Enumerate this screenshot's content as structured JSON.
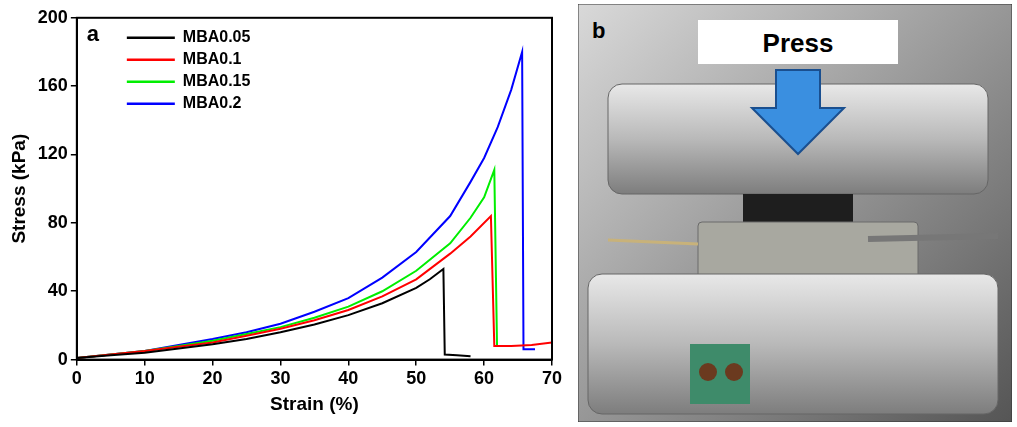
{
  "chart_data": {
    "type": "line",
    "panel_label": "a",
    "x_label": "Strain (%)",
    "y_label": "Stress (kPa)",
    "xlim": [
      0,
      70
    ],
    "xticks": [
      0,
      10,
      20,
      30,
      40,
      50,
      60,
      70
    ],
    "ylim": [
      0,
      200
    ],
    "yticks": [
      0,
      40,
      80,
      120,
      160,
      200
    ],
    "grid": false,
    "legend": "upper left",
    "series": [
      {
        "name": "MBA0.05",
        "color": "#000000",
        "x": [
          0,
          5,
          10,
          15,
          20,
          25,
          30,
          35,
          40,
          45,
          50,
          52,
          54,
          54.2,
          56,
          58
        ],
        "values": [
          1,
          2.5,
          4,
          6.5,
          9,
          12,
          16,
          20.5,
          26,
          33,
          42,
          47,
          53,
          3,
          2.5,
          2
        ]
      },
      {
        "name": "MBA0.1",
        "color": "#ff0000",
        "x": [
          0,
          5,
          10,
          15,
          20,
          25,
          30,
          35,
          40,
          45,
          50,
          55,
          58,
          61,
          61.5,
          64,
          67,
          70
        ],
        "values": [
          1,
          3,
          5,
          7.5,
          10,
          14,
          18,
          23,
          29,
          37,
          47,
          62,
          72,
          84,
          8,
          8,
          8.5,
          10
        ]
      },
      {
        "name": "MBA0.15",
        "color": "#00ee00",
        "x": [
          0,
          5,
          10,
          15,
          20,
          25,
          30,
          35,
          40,
          45,
          50,
          55,
          58,
          60,
          61.5,
          61.9,
          63
        ],
        "values": [
          1,
          3,
          5,
          8,
          11,
          15,
          19,
          24.5,
          31,
          40,
          52,
          68,
          83,
          95,
          111,
          8,
          8
        ]
      },
      {
        "name": "MBA0.2",
        "color": "#0000ff",
        "x": [
          0,
          5,
          10,
          15,
          20,
          25,
          30,
          35,
          40,
          45,
          50,
          55,
          58,
          60,
          62,
          64,
          65.6,
          65.8,
          67.5
        ],
        "values": [
          1,
          3,
          5,
          8.5,
          12,
          16,
          21,
          28,
          36,
          48,
          63,
          84,
          104,
          118,
          136,
          158,
          180,
          6,
          6
        ]
      }
    ]
  },
  "photo": {
    "panel_label": "b",
    "text": "Press"
  }
}
